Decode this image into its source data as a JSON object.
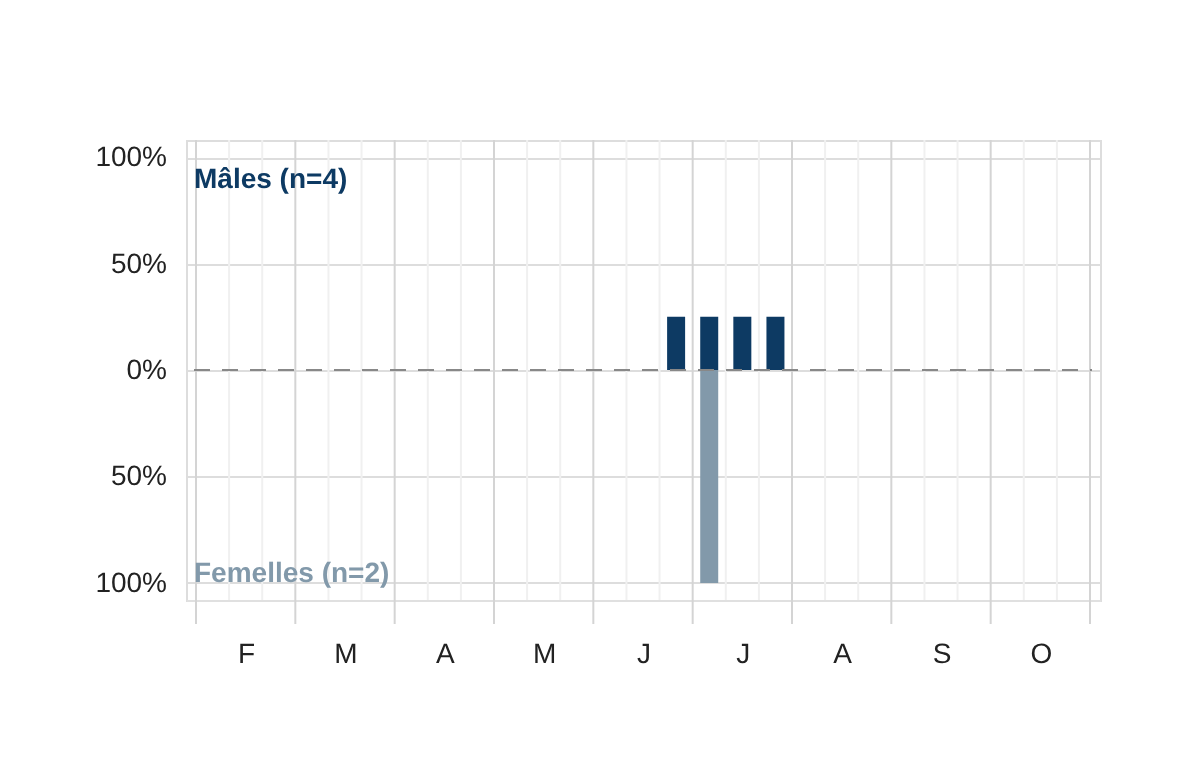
{
  "chart_data": {
    "type": "bar",
    "categories": [
      null,
      "F",
      null,
      null,
      "M",
      null,
      null,
      "A",
      null,
      null,
      "M",
      null,
      null,
      "J",
      null,
      null,
      "J",
      null,
      null,
      "A",
      null,
      null,
      "S",
      null,
      null,
      "O",
      null
    ],
    "series": [
      {
        "name": "Mâles (n=4)",
        "color": "#0d3a63",
        "values": [
          null,
          null,
          null,
          null,
          null,
          null,
          null,
          null,
          null,
          null,
          null,
          null,
          null,
          null,
          25,
          25,
          25,
          25,
          null,
          null,
          null,
          null,
          null,
          null,
          null,
          null,
          null
        ]
      },
      {
        "name": "Femelles (n=2)",
        "color": "#8299aa",
        "values": [
          null,
          null,
          null,
          null,
          null,
          null,
          null,
          null,
          null,
          null,
          null,
          null,
          null,
          null,
          null,
          -100,
          null,
          null,
          null,
          null,
          null,
          null,
          null,
          null,
          null,
          null,
          null
        ]
      }
    ],
    "ylim": [
      -108,
      108
    ],
    "yticks": [
      {
        "value": -100,
        "label": "100%"
      },
      {
        "value": -50,
        "label": "50%"
      },
      {
        "value": 0,
        "label": "0%"
      },
      {
        "value": 50,
        "label": "50%"
      },
      {
        "value": 100,
        "label": "100%"
      }
    ],
    "ref_lines": [
      {
        "axis": "y",
        "value": 0,
        "color": "#888888",
        "line_style": "dashed"
      }
    ],
    "grid": true,
    "legend": false
  }
}
